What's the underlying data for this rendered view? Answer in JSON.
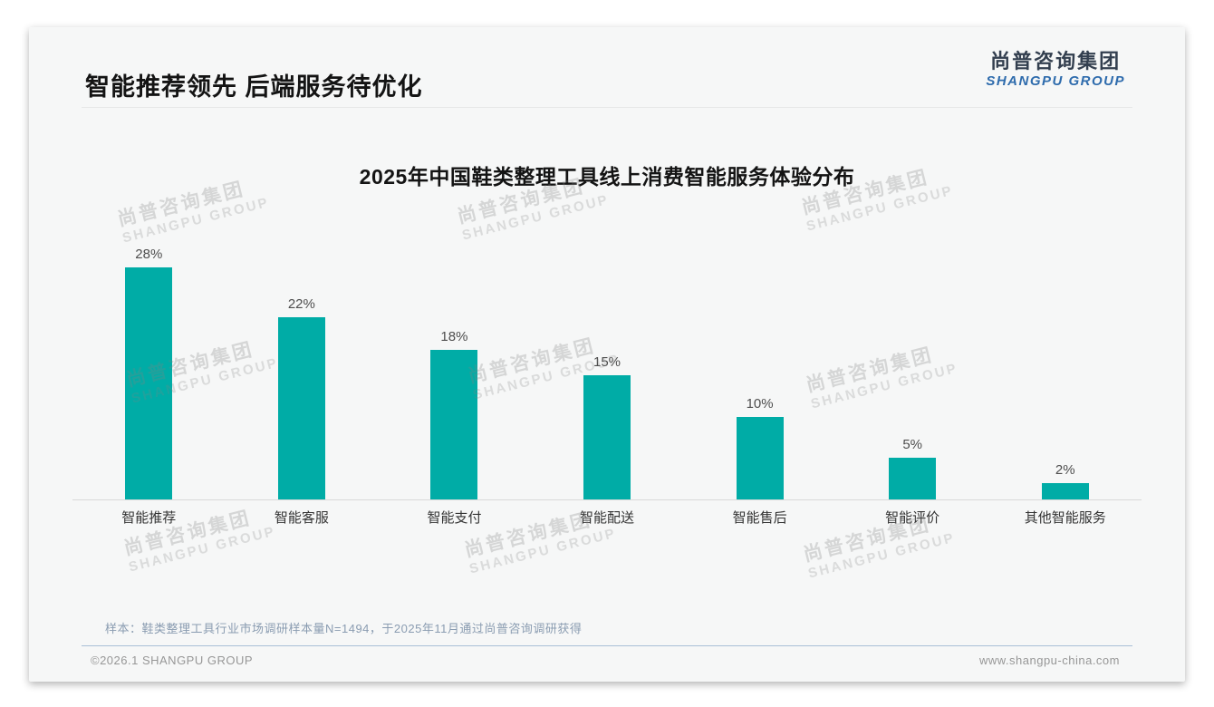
{
  "page": {
    "slide_title": "智能推荐领先 后端服务待优化",
    "logo": {
      "cn": "尚普咨询集团",
      "en": "SHANGPU GROUP"
    },
    "watermark": {
      "cn": "尚普咨询集团",
      "en": "SHANGPU GROUP"
    },
    "note": "样本：鞋类整理工具行业市场调研样本量N=1494，于2025年11月通过尚普咨询调研获得",
    "footer_left": "©2026.1 SHANGPU GROUP",
    "footer_right": "www.shangpu-china.com"
  },
  "colors": {
    "bar": "#00aca6",
    "logo_dark": "#333f4f",
    "logo_blue": "#2f6cad"
  },
  "chart_data": {
    "type": "bar",
    "title": "2025年中国鞋类整理工具线上消费智能服务体验分布",
    "categories": [
      "智能推荐",
      "智能客服",
      "智能支付",
      "智能配送",
      "智能售后",
      "智能评价",
      "其他智能服务"
    ],
    "values": [
      28,
      22,
      18,
      15,
      10,
      5,
      2
    ],
    "value_labels": [
      "28%",
      "22%",
      "18%",
      "15%",
      "10%",
      "5%",
      "2%"
    ],
    "xlabel": "",
    "ylabel": "",
    "ylim": [
      0,
      30
    ],
    "grid": false,
    "legend": "none",
    "bar_color": "#00aca6"
  }
}
